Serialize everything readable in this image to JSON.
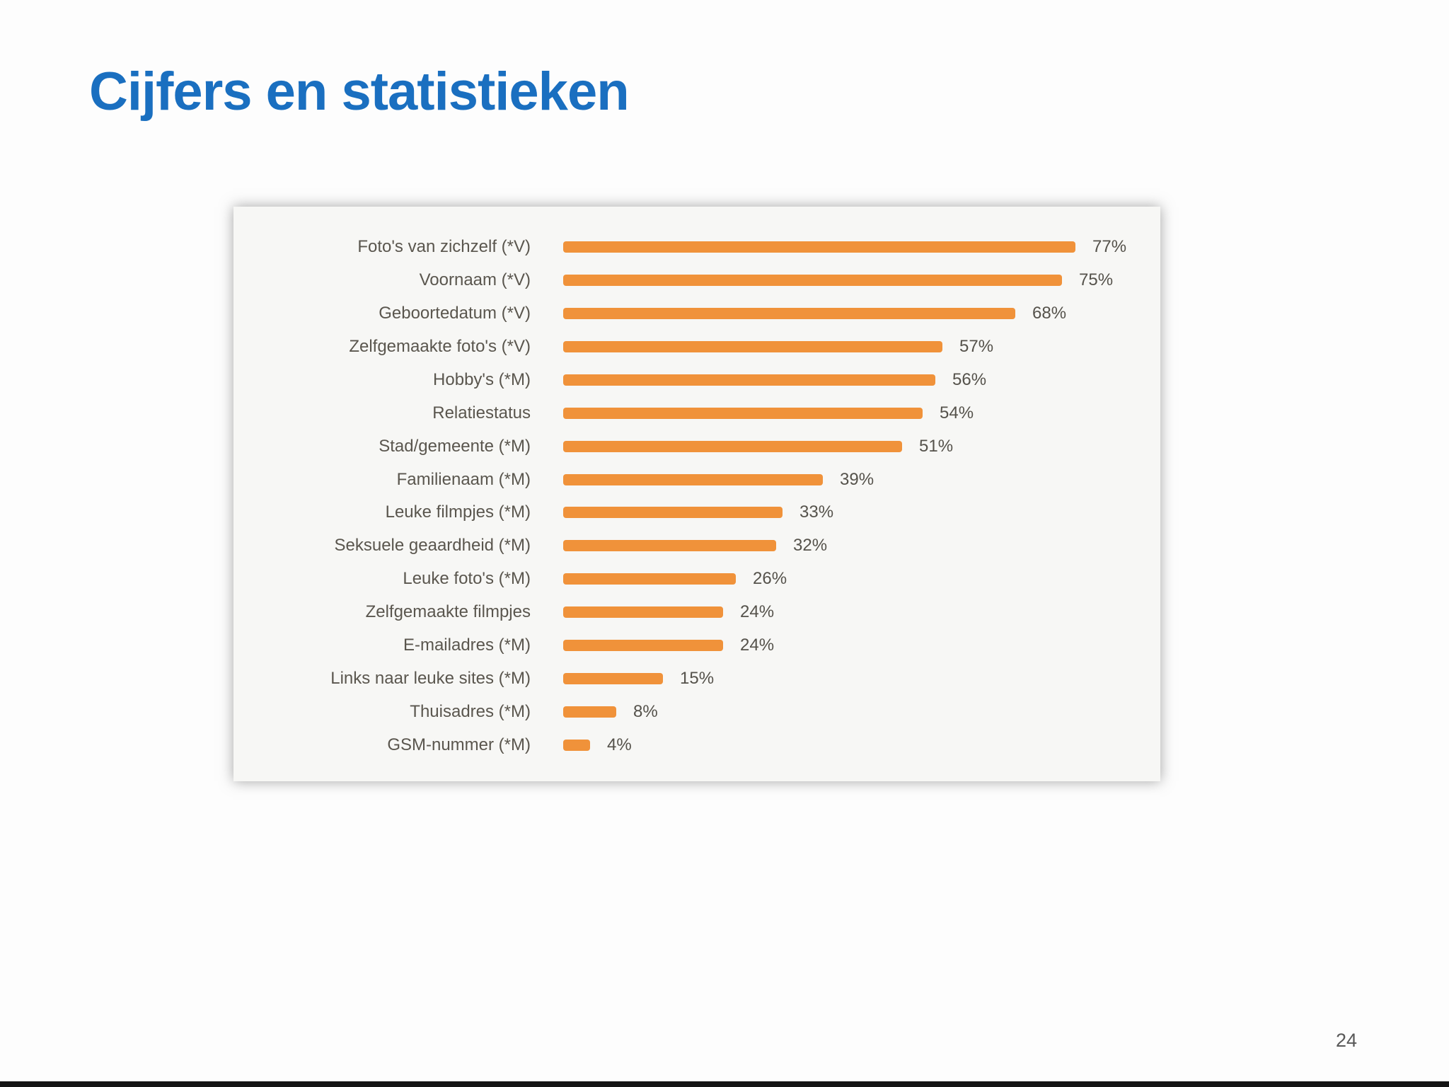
{
  "slide": {
    "title": "Cijfers en statistieken",
    "page_number": "24"
  },
  "chart_data": {
    "type": "bar",
    "orientation": "horizontal",
    "title": "",
    "xlabel": "",
    "ylabel": "",
    "xlim": [
      0,
      100
    ],
    "grid": false,
    "legend": "none",
    "bar_color": "#f0923a",
    "categories": [
      "Foto's van zichzelf (*V)",
      "Voornaam (*V)",
      "Geboortedatum (*V)",
      "Zelfgemaakte foto's (*V)",
      "Hobby's (*M)",
      "Relatiestatus",
      "Stad/gemeente (*M)",
      "Familienaam (*M)",
      "Leuke filmpjes (*M)",
      "Seksuele geaardheid (*M)",
      "Leuke foto's (*M)",
      "Zelfgemaakte filmpjes",
      "E-mailadres (*M)",
      "Links naar leuke sites (*M)",
      "Thuisadres (*M)",
      "GSM-nummer (*M)"
    ],
    "values": [
      77,
      75,
      68,
      57,
      56,
      54,
      51,
      39,
      33,
      32,
      26,
      24,
      24,
      15,
      8,
      4
    ],
    "value_labels": [
      "77%",
      "75%",
      "68%",
      "57%",
      "56%",
      "54%",
      "51%",
      "39%",
      "33%",
      "32%",
      "26%",
      "24%",
      "24%",
      "15%",
      "8%",
      "4%"
    ]
  }
}
